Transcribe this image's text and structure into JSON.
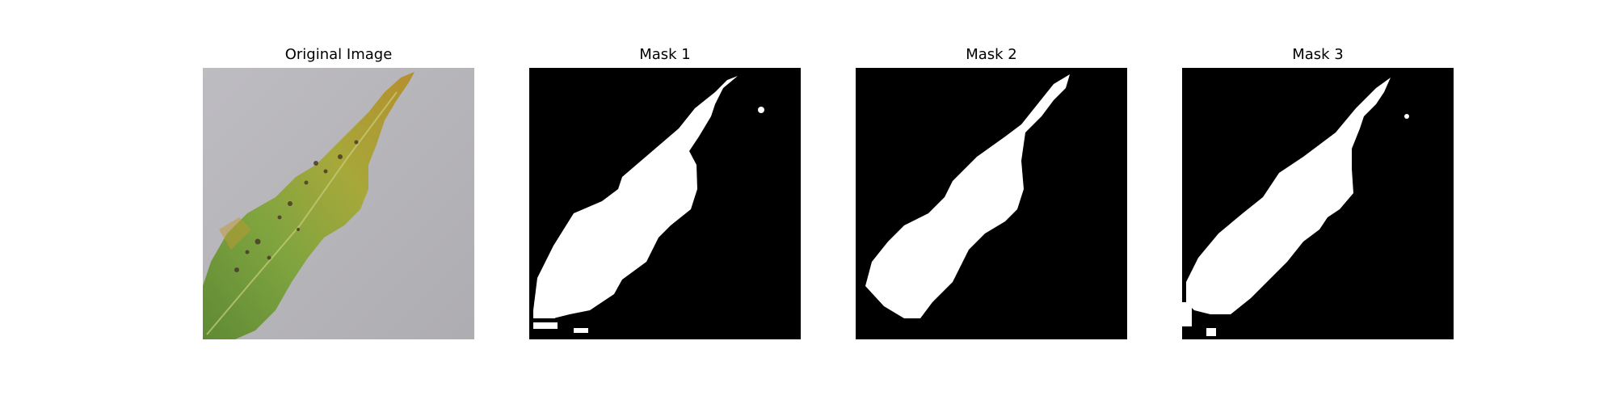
{
  "panels": [
    {
      "title": "Original Image",
      "kind": "photo",
      "subject": "leaf-photo"
    },
    {
      "title": "Mask 1",
      "kind": "mask",
      "subject": "leaf-mask"
    },
    {
      "title": "Mask 2",
      "kind": "mask",
      "subject": "leaf-mask"
    },
    {
      "title": "Mask 3",
      "kind": "mask",
      "subject": "leaf-mask"
    }
  ],
  "colors": {
    "background": "#ffffff",
    "mask_background": "#000000",
    "mask_foreground": "#ffffff",
    "photo_surface": "#b9b8bc",
    "leaf_green": "#7fa03e",
    "leaf_yellow": "#b3a83a",
    "leaf_spots": "#4a3a2a"
  }
}
